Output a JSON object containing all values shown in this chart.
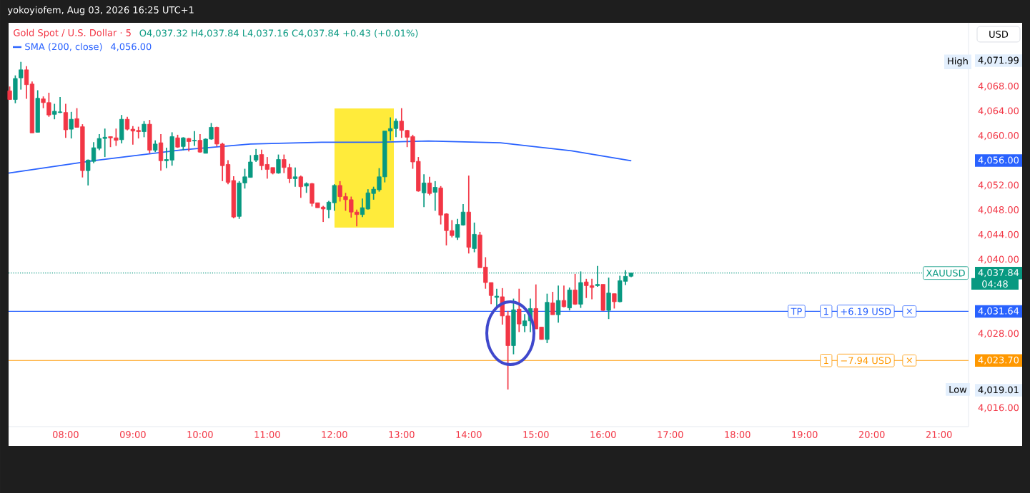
{
  "chart_data": {
    "type": "candlestick",
    "title": "Gold Spot / U.S. Dollar · 5",
    "subtitle": "O4,037.32  H4,037.84  L4,037.16  C4,037.84  +0.43 (+0.01%)",
    "x": [
      7.1667,
      7.25,
      7.3333,
      7.4167,
      7.5,
      7.5833,
      7.6667,
      7.75,
      7.8333,
      7.9167,
      8,
      8.0833,
      8.1667,
      8.25,
      8.3333,
      8.4167,
      8.5,
      8.5833,
      8.6667,
      8.75,
      8.8333,
      8.9167,
      9,
      9.0833,
      9.1667,
      9.25,
      9.3333,
      9.4167,
      9.5,
      9.5833,
      9.6667,
      9.75,
      9.8333,
      9.9167,
      10,
      10.0833,
      10.1667,
      10.25,
      10.3333,
      10.4167,
      10.5,
      10.5833,
      10.6667,
      10.75,
      10.8333,
      10.9167,
      11,
      11.0833,
      11.1667,
      11.25,
      11.3333,
      11.4167,
      11.5,
      11.5833,
      11.6667,
      11.75,
      11.8333,
      11.9167,
      12,
      12.0833,
      12.1667,
      12.25,
      12.3333,
      12.4167,
      12.5,
      12.5833,
      12.6667,
      12.75,
      12.8333,
      12.9167,
      13,
      13.0833,
      13.1667,
      13.25,
      13.3333,
      13.4167,
      13.5,
      13.5833,
      13.6667,
      13.75,
      13.8333,
      13.9167,
      14,
      14.0833,
      14.1667,
      14.25,
      14.3333,
      14.4167,
      14.5,
      14.5833,
      14.6667,
      14.75,
      14.8333,
      14.9167,
      15,
      15.0833,
      15.1667,
      15.25,
      15.3333,
      15.4167,
      15.5,
      15.5833,
      15.6667,
      15.75,
      15.8333,
      15.9167,
      16,
      16.0833,
      16.1667,
      16.25,
      16.3333,
      16.4167
    ],
    "ohlc": [
      [
        4067.3,
        4068.0,
        4065.9,
        4065.9
      ],
      [
        4065.9,
        4069.8,
        4065.3,
        4069.3
      ],
      [
        4069.4,
        4071.99,
        4067.5,
        4070.7
      ],
      [
        4070.7,
        4071.3,
        4066.0,
        4068.3
      ],
      [
        4068.4,
        4068.8,
        4060.5,
        4060.5
      ],
      [
        4060.6,
        4067.4,
        4060.6,
        4066.1
      ],
      [
        4066.0,
        4066.4,
        4064.5,
        4065.4
      ],
      [
        4065.4,
        4067.0,
        4063.1,
        4063.4
      ],
      [
        4063.5,
        4065.2,
        4062.7,
        4064.0
      ],
      [
        4063.8,
        4066.3,
        4063.7,
        4063.9
      ],
      [
        4063.8,
        4065.2,
        4059.7,
        4061.0
      ],
      [
        4061.1,
        4063.9,
        4059.6,
        4062.7
      ],
      [
        4062.8,
        4064.5,
        4061.4,
        4061.4
      ],
      [
        4061.5,
        4061.9,
        4053.3,
        4054.4
      ],
      [
        4054.4,
        4056.2,
        4052.0,
        4056.1
      ],
      [
        4055.9,
        4059.0,
        4055.6,
        4058.1
      ],
      [
        4058.0,
        4060.3,
        4057.7,
        4059.6
      ],
      [
        4059.6,
        4061.2,
        4056.6,
        4059.8
      ],
      [
        4059.9,
        4059.9,
        4058.2,
        4059.7
      ],
      [
        4059.7,
        4061.2,
        4058.4,
        4059.3
      ],
      [
        4059.4,
        4063.4,
        4058.8,
        4062.7
      ],
      [
        4062.7,
        4063.1,
        4060.9,
        4061.1
      ],
      [
        4061.1,
        4061.6,
        4058.6,
        4060.8
      ],
      [
        4060.9,
        4061.5,
        4059.6,
        4060.7
      ],
      [
        4060.7,
        4062.4,
        4059.8,
        4061.9
      ],
      [
        4061.9,
        4062.6,
        4057.2,
        4057.7
      ],
      [
        4057.7,
        4059.3,
        4057.4,
        4058.7
      ],
      [
        4058.9,
        4060.3,
        4054.4,
        4056.0
      ],
      [
        4056.0,
        4058.1,
        4054.8,
        4056.2
      ],
      [
        4056.1,
        4060.6,
        4055.2,
        4059.9
      ],
      [
        4059.7,
        4060.2,
        4058.1,
        4058.2
      ],
      [
        4058.3,
        4059.8,
        4057.7,
        4059.7
      ],
      [
        4059.6,
        4059.7,
        4057.5,
        4059.1
      ],
      [
        4059.2,
        4060.8,
        4058.4,
        4059.3
      ],
      [
        4059.3,
        4060.3,
        4057.3,
        4057.4
      ],
      [
        4057.2,
        4059.6,
        4057.2,
        4059.5
      ],
      [
        4059.5,
        4062.1,
        4059.4,
        4061.4
      ],
      [
        4061.4,
        4061.5,
        4058.3,
        4058.7
      ],
      [
        4058.7,
        4058.9,
        4052.7,
        4055.2
      ],
      [
        4055.4,
        4056.1,
        4052.2,
        4052.5
      ],
      [
        4052.8,
        4053.5,
        4046.7,
        4046.9
      ],
      [
        4047.0,
        4052.7,
        4046.6,
        4052.4
      ],
      [
        4052.4,
        4054.7,
        4051.5,
        4053.4
      ],
      [
        4053.3,
        4056.9,
        4053.3,
        4055.8
      ],
      [
        4056.1,
        4057.9,
        4055.8,
        4056.9
      ],
      [
        4057.0,
        4057.8,
        4054.5,
        4055.2
      ],
      [
        4055.4,
        4056.6,
        4053.1,
        4054.6
      ],
      [
        4054.9,
        4054.9,
        4053.8,
        4054.0
      ],
      [
        4054.0,
        4057.0,
        4053.9,
        4056.2
      ],
      [
        4056.2,
        4057.0,
        4054.0,
        4054.9
      ],
      [
        4054.9,
        4055.5,
        4052.4,
        4053.1
      ],
      [
        4053.1,
        4054.9,
        4051.8,
        4053.4
      ],
      [
        4053.4,
        4053.6,
        4050.0,
        4051.8
      ],
      [
        4051.9,
        4052.5,
        4050.8,
        4052.3
      ],
      [
        4052.3,
        4052.4,
        4048.6,
        4049.1
      ],
      [
        4049.2,
        4049.2,
        4048.4,
        4048.4
      ],
      [
        4048.5,
        4048.7,
        4046.1,
        4048.2
      ],
      [
        4048.1,
        4049.5,
        4046.7,
        4049.3
      ],
      [
        4049.2,
        4052.2,
        4047.9,
        4052.0
      ],
      [
        4052.0,
        4052.7,
        4049.4,
        4050.2
      ],
      [
        4050.2,
        4050.8,
        4047.9,
        4049.7
      ],
      [
        4049.7,
        4050.2,
        4046.8,
        4047.7
      ],
      [
        4047.7,
        4048.1,
        4045.4,
        4047.3
      ],
      [
        4047.3,
        4049.9,
        4046.9,
        4048.4
      ],
      [
        4048.2,
        4051.4,
        4048.1,
        4050.8
      ],
      [
        4050.7,
        4051.8,
        4049.7,
        4051.4
      ],
      [
        4051.3,
        4054.8,
        4051.0,
        4053.4
      ],
      [
        4053.4,
        4060.8,
        4052.5,
        4060.8
      ],
      [
        4060.8,
        4063.0,
        4059.3,
        4061.2
      ],
      [
        4061.2,
        4062.8,
        4059.8,
        4062.4
      ],
      [
        4062.4,
        4064.5,
        4059.7,
        4060.9
      ],
      [
        4060.9,
        4061.0,
        4058.2,
        4059.8
      ],
      [
        4059.9,
        4060.2,
        4054.7,
        4055.8
      ],
      [
        4055.9,
        4056.6,
        4051.0,
        4051.1
      ],
      [
        4050.8,
        4053.8,
        4048.5,
        4052.4
      ],
      [
        4052.4,
        4053.4,
        4050.4,
        4050.7
      ],
      [
        4050.9,
        4052.7,
        4047.9,
        4051.7
      ],
      [
        4051.6,
        4051.9,
        4045.7,
        4047.2
      ],
      [
        4047.4,
        4047.5,
        4042.3,
        4044.7
      ],
      [
        4044.7,
        4046.4,
        4043.6,
        4043.9
      ],
      [
        4043.6,
        4046.6,
        4043.2,
        4045.7
      ],
      [
        4045.6,
        4049.0,
        4045.5,
        4047.7
      ],
      [
        4047.7,
        4053.6,
        4041.0,
        4042.0
      ],
      [
        4041.8,
        4046.0,
        4041.2,
        4044.1
      ],
      [
        4044.0,
        4044.5,
        4038.7,
        4038.7
      ],
      [
        4038.8,
        4040.4,
        4035.3,
        4036.3
      ],
      [
        4036.3,
        4036.3,
        4032.8,
        4034.2
      ],
      [
        4033.9,
        4035.3,
        4032.4,
        4034.1
      ],
      [
        4034.0,
        4035.4,
        4029.5,
        4030.9
      ],
      [
        4030.9,
        4031.7,
        4019.01,
        4026.1
      ],
      [
        4026.1,
        4033.7,
        4024.7,
        4031.9
      ],
      [
        4032.0,
        4035.3,
        4028.3,
        4029.6
      ],
      [
        4029.3,
        4031.2,
        4028.3,
        4030.1
      ],
      [
        4030.1,
        4033.7,
        4028.3,
        4032.1
      ],
      [
        4032.1,
        4036.0,
        4028.8,
        4028.8
      ],
      [
        4029.1,
        4029.1,
        4027.1,
        4027.1
      ],
      [
        4027.1,
        4034.5,
        4026.5,
        4033.1
      ],
      [
        4033.0,
        4034.8,
        4031.1,
        4031.1
      ],
      [
        4031.1,
        4035.8,
        4029.8,
        4033.4
      ],
      [
        4033.4,
        4035.8,
        4032.3,
        4032.4
      ],
      [
        4032.2,
        4035.5,
        4031.8,
        4035.1
      ],
      [
        4035.1,
        4037.7,
        4032.7,
        4032.8
      ],
      [
        4032.8,
        4038.1,
        4032.2,
        4036.3
      ],
      [
        4036.4,
        4036.9,
        4033.8,
        4035.8
      ],
      [
        4035.8,
        4036.9,
        4033.6,
        4035.5
      ],
      [
        4035.8,
        4039.0,
        4035.6,
        4036.0
      ],
      [
        4036.0,
        4036.0,
        4031.7,
        4031.8
      ],
      [
        4031.8,
        4037.1,
        4030.4,
        4034.6
      ],
      [
        4034.5,
        4034.5,
        4032.1,
        4033.2
      ],
      [
        4033.2,
        4037.4,
        4033.1,
        4036.6
      ],
      [
        4036.5,
        4038.3,
        4035.9,
        4037.3
      ],
      [
        4037.32,
        4037.84,
        4037.16,
        4037.84
      ]
    ],
    "colors": [
      "#f23645",
      "#089981",
      "#089981",
      "#f23645",
      "#f23645",
      "#089981",
      "#f23645",
      "#f23645",
      "#089981",
      "#089981",
      "#f23645",
      "#089981",
      "#f23645",
      "#f23645",
      "#089981",
      "#089981",
      "#089981",
      "#089981",
      "#f23645",
      "#f23645",
      "#089981",
      "#f23645",
      "#f23645",
      "#f23645",
      "#089981",
      "#f23645",
      "#089981",
      "#f23645",
      "#089981",
      "#089981",
      "#f23645",
      "#089981",
      "#f23645",
      "#089981",
      "#f23645",
      "#089981",
      "#089981",
      "#f23645",
      "#f23645",
      "#f23645",
      "#f23645",
      "#089981",
      "#089981",
      "#089981",
      "#089981",
      "#f23645",
      "#f23645",
      "#f23645",
      "#089981",
      "#f23645",
      "#f23645",
      "#089981",
      "#f23645",
      "#089981",
      "#f23645",
      "#f23645",
      "#f23645",
      "#089981",
      "#089981",
      "#f23645",
      "#f23645",
      "#f23645",
      "#f23645",
      "#089981",
      "#089981",
      "#089981",
      "#089981",
      "#089981",
      "#089981",
      "#089981",
      "#f23645",
      "#f23645",
      "#f23645",
      "#f23645",
      "#089981",
      "#f23645",
      "#089981",
      "#f23645",
      "#f23645",
      "#f23645",
      "#089981",
      "#089981",
      "#f23645",
      "#089981",
      "#f23645",
      "#f23645",
      "#f23645",
      "#089981",
      "#f23645",
      "#f23645",
      "#089981",
      "#f23645",
      "#089981",
      "#089981",
      "#f23645",
      "#f23645",
      "#089981",
      "#f23645",
      "#089981",
      "#f23645",
      "#089981",
      "#f23645",
      "#089981",
      "#f23645",
      "#f23645",
      "#089981",
      "#f23645",
      "#089981",
      "#f23645",
      "#089981",
      "#089981",
      "#089981"
    ],
    "series": [
      {
        "name": "SMA (200, close)",
        "type": "line",
        "color": "#2962ff",
        "x": [
          7.15,
          8.4,
          9.68,
          10.75,
          11.81,
          12.66,
          13.4,
          14.47,
          15.53,
          16.42
        ],
        "values": [
          4054.0,
          4056.0,
          4057.7,
          4058.7,
          4059.0,
          4059.0,
          4059.2,
          4058.9,
          4057.6,
          4056.0
        ]
      }
    ],
    "xlim": [
      7.15,
      21.44
    ],
    "xticks": [
      {
        "value": 8,
        "label": "08:00"
      },
      {
        "value": 9,
        "label": "09:00"
      },
      {
        "value": 10,
        "label": "10:00"
      },
      {
        "value": 11,
        "label": "11:00"
      },
      {
        "value": 12,
        "label": "12:00"
      },
      {
        "value": 13,
        "label": "13:00"
      },
      {
        "value": 14,
        "label": "14:00"
      },
      {
        "value": 15,
        "label": "15:00"
      },
      {
        "value": 16,
        "label": "16:00"
      },
      {
        "value": 17,
        "label": "17:00"
      },
      {
        "value": 18,
        "label": "18:00"
      },
      {
        "value": 19,
        "label": "19:00"
      },
      {
        "value": 20,
        "label": "20:00"
      },
      {
        "value": 21,
        "label": "21:00"
      }
    ],
    "ylim": [
      4013.0,
      4078.3
    ],
    "yticks": [
      {
        "value": 4016,
        "label": "4,016.00"
      },
      {
        "value": 4028,
        "label": "4,028.00"
      },
      {
        "value": 4040,
        "label": "4,040.00"
      },
      {
        "value": 4044,
        "label": "4,044.00"
      },
      {
        "value": 4048,
        "label": "4,048.00"
      },
      {
        "value": 4052,
        "label": "4,052.00"
      },
      {
        "value": 4060,
        "label": "4,060.00"
      },
      {
        "value": 4064,
        "label": "4,064.00"
      },
      {
        "value": 4068,
        "label": "4,068.00"
      }
    ],
    "ref_lines": [
      {
        "axis": "y",
        "value": 4037.84,
        "label": "4,037.84",
        "color": "#089981",
        "line_style": "dotted"
      },
      {
        "axis": "y",
        "value": 4031.64,
        "label": "4,031.64",
        "color": "#2962ff",
        "line_style": "solid"
      },
      {
        "axis": "y",
        "value": 4023.7,
        "label": "4,023.70",
        "color": "#ff9800",
        "line_style": "solid"
      }
    ],
    "annotations": [
      "yokoyiofem, Aug 03, 2026 16:25 UTC+1",
      "4,056.00",
      "USD",
      "04:48",
      "4,056.00",
      "4,071.99",
      "4,019.01",
      {
        "text": "High",
        "x": 21.28,
        "y": 4071.99
      },
      {
        "text": "Low",
        "x": 21.28,
        "y": 4019.01
      },
      {
        "text": "XAUUSD",
        "x": 21.1,
        "y": 4037.84
      },
      {
        "text": "TP",
        "x": 18.88,
        "y": 4031.64
      },
      {
        "text": "1",
        "x": 19.32,
        "y": 4031.64
      },
      {
        "text": "+6.19 USD",
        "x": 19.91,
        "y": 4031.64
      },
      {
        "text": "×",
        "x": 20.56,
        "y": 4031.64
      },
      {
        "text": "1",
        "x": 19.32,
        "y": 4023.7
      },
      {
        "text": "−7.94 USD",
        "x": 19.91,
        "y": 4023.7
      },
      {
        "text": "×",
        "x": 20.56,
        "y": 4023.7
      }
    ]
  }
}
